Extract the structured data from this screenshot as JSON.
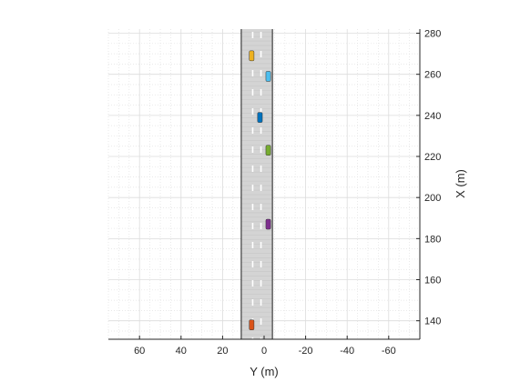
{
  "chart_data": {
    "type": "scatter",
    "title": "",
    "xlabel": "Y (m)",
    "ylabel": "X (m)",
    "xlim": [
      75,
      -75
    ],
    "ylim": [
      131,
      282
    ],
    "x_ticks": [
      60,
      40,
      20,
      0,
      -20,
      -40,
      -60
    ],
    "x_tick_labels": [
      "60",
      "40",
      "20",
      "0",
      "-20",
      "-40",
      "-60"
    ],
    "y_ticks": [
      140,
      160,
      180,
      200,
      220,
      240,
      260,
      280
    ],
    "y_tick_labels": [
      "140",
      "160",
      "180",
      "200",
      "220",
      "240",
      "260",
      "280"
    ],
    "grid": true,
    "minor_grid": true,
    "road": {
      "left_edge": 11,
      "right_edge": -4,
      "lane_markings": [
        5.5,
        1.5
      ],
      "color": "#d4d4d4"
    },
    "vehicles": [
      {
        "name": "vehicle-orange",
        "y": 6,
        "x": 269,
        "color": "#edb120"
      },
      {
        "name": "vehicle-light-blue",
        "y": -2,
        "x": 259,
        "color": "#4dbeee"
      },
      {
        "name": "vehicle-blue",
        "y": 2,
        "x": 239,
        "color": "#0072bd"
      },
      {
        "name": "vehicle-green",
        "y": -2,
        "x": 223,
        "color": "#77ac30"
      },
      {
        "name": "vehicle-purple",
        "y": -2,
        "x": 187,
        "color": "#7e2f8e"
      },
      {
        "name": "vehicle-red",
        "y": 6,
        "x": 138,
        "color": "#d95319"
      }
    ]
  }
}
